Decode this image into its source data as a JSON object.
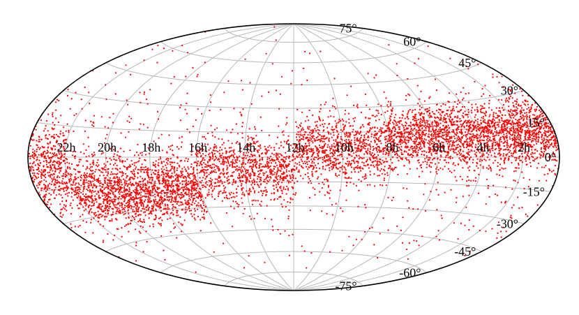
{
  "chart_data": {
    "type": "scatter",
    "projection": "hammer-aitoff",
    "title": "",
    "xlabel": "",
    "ylabel": "",
    "x_unit": "right ascension (hours)",
    "y_unit": "declination (degrees)",
    "xlim": [
      0,
      24
    ],
    "ylim": [
      -90,
      90
    ],
    "x_direction": "increasing-right-to-left",
    "grid": true,
    "legend": "none",
    "ra_tick_labels": [
      "22h",
      "20h",
      "18h",
      "16h",
      "14h",
      "12h",
      "10h",
      "8h",
      "6h",
      "4h",
      "2h"
    ],
    "ra_tick_values": [
      22,
      20,
      18,
      16,
      14,
      12,
      10,
      8,
      6,
      4,
      2
    ],
    "dec_tick_labels": [
      "75°",
      "60°",
      "45°",
      "30°",
      "15°",
      "0°",
      "-15°",
      "-30°",
      "-45°",
      "-60°",
      "-75°"
    ],
    "dec_tick_values": [
      75,
      60,
      45,
      30,
      15,
      0,
      -15,
      -30,
      -45,
      -60,
      -75
    ],
    "series": [
      {
        "color": "#ff0000",
        "marker": "dot",
        "density_bands": [
          {
            "ra_range": [
              0,
              8
            ],
            "dec_center": 12,
            "dec_spread": 14,
            "relative_density": 1.0
          },
          {
            "ra_range": [
              8,
              12
            ],
            "dec_center": 5,
            "dec_spread": 16,
            "relative_density": 0.8
          },
          {
            "ra_range": [
              12,
              16
            ],
            "dec_center": -8,
            "dec_spread": 16,
            "relative_density": 0.75
          },
          {
            "ra_range": [
              16,
              22
            ],
            "dec_center": -18,
            "dec_spread": 15,
            "relative_density": 1.0
          },
          {
            "ra_range": [
              22,
              24
            ],
            "dec_center": -5,
            "dec_spread": 18,
            "relative_density": 0.8
          },
          {
            "ra_range": [
              0,
              24
            ],
            "dec_center": 0,
            "dec_spread": 45,
            "relative_density": 0.12
          }
        ],
        "approximate_point_count": 7000
      }
    ]
  }
}
